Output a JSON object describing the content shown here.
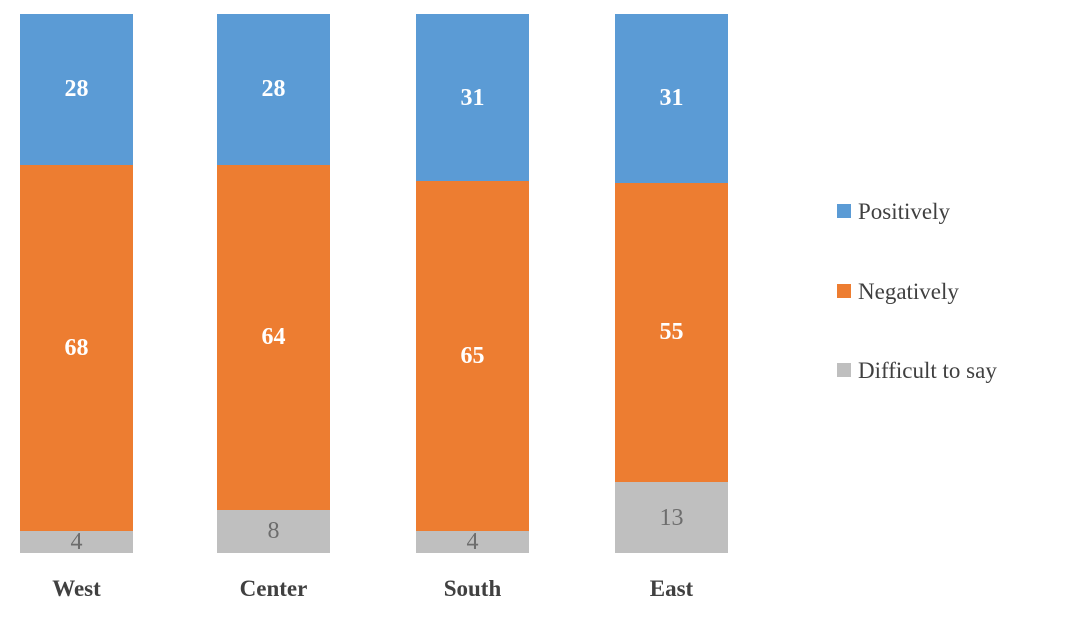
{
  "chart_data": {
    "type": "bar",
    "variant": "stacked-column-100",
    "title": "",
    "xlabel": "",
    "ylabel": "",
    "grid": false,
    "axes_visible": false,
    "legend_position": "right",
    "categories": [
      "West",
      "Center",
      "South",
      "East"
    ],
    "series": [
      {
        "name": "Positively",
        "color": "#5B9BD5",
        "label_style": "light",
        "values": [
          28,
          28,
          31,
          31
        ]
      },
      {
        "name": "Negatively",
        "color": "#ED7D31",
        "label_style": "light",
        "values": [
          68,
          64,
          65,
          55
        ]
      },
      {
        "name": "Difficult to say",
        "color": "#BFBFBF",
        "label_style": "dark",
        "values": [
          4,
          8,
          4,
          13
        ]
      }
    ],
    "value_labels_shown": true,
    "category_label_color": "#404040",
    "legend_text_color": "#404040"
  }
}
